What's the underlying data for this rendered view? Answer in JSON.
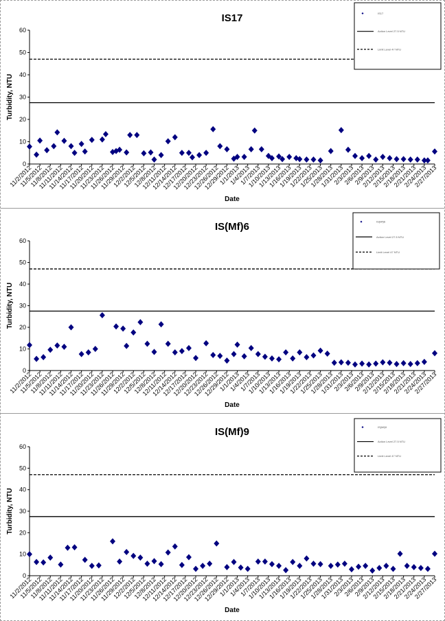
{
  "chart_data": [
    {
      "type": "scatter",
      "title": "IS17",
      "xlabel": "Date",
      "ylabel": "Turbidity, NTU",
      "ylim": [
        0,
        60
      ],
      "yticks": [
        "0",
        "10",
        "20",
        "30",
        "40",
        "50",
        "60"
      ],
      "grid": false,
      "legend_position": "top-right",
      "legend": [
        "IS17",
        "Action Level 27.5 NTU",
        "Limit Level 47 NTU"
      ],
      "reference_lines": [
        {
          "name": "Action Level 27.5 NTU",
          "value": 27.5,
          "style": "solid"
        },
        {
          "name": "Limit Level 47 NTU",
          "value": 47,
          "style": "dashed"
        }
      ],
      "x_start": "11/2/2012",
      "x_end": "2/27/2013",
      "xtick_labels": [
        "11/2/2012",
        "11/5/2012",
        "11/8/2012",
        "11/11/2012",
        "11/14/2012",
        "11/17/2012",
        "11/20/2012",
        "11/23/2012",
        "11/26/2012",
        "11/29/2012",
        "12/2/2012",
        "12/5/2012",
        "12/8/2012",
        "12/11/2012",
        "12/14/2012",
        "12/17/2012",
        "12/20/2012",
        "12/23/2012",
        "12/26/2012",
        "12/29/2012",
        "1/1/2013",
        "1/4/2013",
        "1/7/2013",
        "1/10/2013",
        "1/13/2013",
        "1/16/2013",
        "1/19/2013",
        "1/22/2013",
        "1/25/2013",
        "1/28/2013",
        "1/31/2013",
        "2/3/2013",
        "2/6/2013",
        "2/9/2013",
        "2/12/2013",
        "2/15/2013",
        "2/18/2013",
        "2/21/2013",
        "2/24/2013",
        "2/27/2013"
      ],
      "series": [
        {
          "name": "IS17",
          "x": [
            "11/2/2012",
            "11/4/2012",
            "11/5/2012",
            "11/7/2012",
            "11/9/2012",
            "11/10/2012",
            "11/12/2012",
            "11/14/2012",
            "11/15/2012",
            "11/17/2012",
            "11/18/2012",
            "11/20/2012",
            "11/23/2012",
            "11/24/2012",
            "11/26/2012",
            "11/27/2012",
            "11/28/2012",
            "11/30/2012",
            "12/1/2012",
            "12/3/2012",
            "12/5/2012",
            "12/7/2012",
            "12/8/2012",
            "12/10/2012",
            "12/12/2012",
            "12/14/2012",
            "12/16/2012",
            "12/18/2012",
            "12/19/2012",
            "12/21/2012",
            "12/23/2012",
            "12/25/2012",
            "12/27/2012",
            "12/29/2012",
            "12/31/2012",
            "1/1/2013",
            "1/3/2013",
            "1/5/2013",
            "1/6/2013",
            "1/8/2013",
            "1/10/2013",
            "1/11/2013",
            "1/13/2013",
            "1/14/2013",
            "1/16/2013",
            "1/18/2013",
            "1/19/2013",
            "1/21/2013",
            "1/23/2013",
            "1/25/2013",
            "1/28/2013",
            "1/31/2013",
            "2/2/2013",
            "2/4/2013",
            "2/6/2013",
            "2/8/2013",
            "2/10/2013",
            "2/12/2013",
            "2/14/2013",
            "2/16/2013",
            "2/18/2013",
            "2/20/2013",
            "2/22/2013",
            "2/24/2013",
            "2/25/2013",
            "2/27/2013"
          ],
          "y": [
            7.8,
            4.2,
            10.5,
            6.2,
            8.0,
            14.2,
            10.4,
            8.0,
            5.0,
            9.0,
            5.6,
            10.8,
            11.0,
            13.4,
            5.4,
            5.8,
            6.4,
            5.2,
            13.0,
            13.0,
            4.8,
            5.2,
            2.0,
            4.0,
            10.2,
            12.0,
            5.0,
            5.0,
            3.0,
            4.0,
            5.0,
            15.6,
            8.0,
            6.6,
            2.4,
            3.2,
            3.2,
            6.6,
            15.0,
            6.6,
            3.6,
            2.6,
            3.4,
            2.2,
            3.2,
            2.6,
            2.2,
            2.0,
            2.0,
            1.6,
            5.8,
            15.2,
            6.4,
            3.6,
            2.6,
            3.6,
            2.0,
            3.2,
            2.6,
            2.2,
            2.2,
            2.0,
            2.0,
            1.6,
            1.6,
            5.6
          ]
        }
      ]
    },
    {
      "type": "scatter",
      "title": "IS(Mf)6",
      "xlabel": "Date",
      "ylabel": "Turbidity, NTU",
      "ylim": [
        0,
        60
      ],
      "yticks": [
        "0",
        "10",
        "20",
        "30",
        "40",
        "50",
        "60"
      ],
      "grid": false,
      "legend_position": "top-right",
      "legend": [
        "IS(Mf)6",
        "Action Level 27.5 NTU",
        "Limit Level 47 NTU"
      ],
      "reference_lines": [
        {
          "name": "Action Level 27.5 NTU",
          "value": 27.5,
          "style": "solid"
        },
        {
          "name": "Limit Level 47 NTU",
          "value": 47,
          "style": "dashed"
        }
      ],
      "x_start": "11/2/2012",
      "x_end": "2/27/2013",
      "xtick_labels": [
        "11/2/2012",
        "11/5/2012",
        "11/8/2012",
        "11/11/2012",
        "11/14/2012",
        "11/17/2012",
        "11/20/2012",
        "11/23/2012",
        "11/26/2012",
        "11/29/2012",
        "12/2/2012",
        "12/5/2012",
        "12/8/2012",
        "12/11/2012",
        "12/14/2012",
        "12/17/2012",
        "12/20/2012",
        "12/23/2012",
        "12/26/2012",
        "12/29/2012",
        "1/1/2013",
        "1/4/2013",
        "1/7/2013",
        "1/10/2013",
        "1/13/2013",
        "1/16/2013",
        "1/19/2013",
        "1/22/2013",
        "1/25/2013",
        "1/28/2013",
        "1/31/2013",
        "2/3/2013",
        "2/6/2013",
        "2/9/2013",
        "2/12/2013",
        "2/15/2013",
        "2/18/2013",
        "2/21/2013",
        "2/24/2013",
        "2/27/2013"
      ],
      "series": [
        {
          "name": "IS(Mf)6",
          "x": [
            "11/2/2012",
            "11/4/2012",
            "11/6/2012",
            "11/8/2012",
            "11/10/2012",
            "11/12/2012",
            "11/14/2012",
            "11/17/2012",
            "11/19/2012",
            "11/21/2012",
            "11/23/2012",
            "11/27/2012",
            "11/29/2012",
            "11/30/2012",
            "12/2/2012",
            "12/4/2012",
            "12/6/2012",
            "12/8/2012",
            "12/10/2012",
            "12/12/2012",
            "12/14/2012",
            "12/16/2012",
            "12/18/2012",
            "12/20/2012",
            "12/23/2012",
            "12/25/2012",
            "12/27/2012",
            "12/29/2012",
            "12/31/2012",
            "1/1/2013",
            "1/3/2013",
            "1/5/2013",
            "1/7/2013",
            "1/9/2013",
            "1/11/2013",
            "1/13/2013",
            "1/15/2013",
            "1/17/2013",
            "1/19/2013",
            "1/21/2013",
            "1/23/2013",
            "1/25/2013",
            "1/27/2013",
            "1/29/2013",
            "1/31/2013",
            "2/2/2013",
            "2/4/2013",
            "2/6/2013",
            "2/8/2013",
            "2/10/2013",
            "2/12/2013",
            "2/14/2013",
            "2/16/2013",
            "2/18/2013",
            "2/20/2013",
            "2/22/2013",
            "2/24/2013",
            "2/27/2013"
          ],
          "y": [
            11.8,
            5.4,
            6.2,
            9.6,
            11.6,
            11.0,
            20.0,
            7.6,
            8.4,
            10.0,
            25.6,
            20.4,
            19.4,
            11.4,
            17.6,
            22.4,
            12.4,
            8.6,
            21.4,
            12.4,
            8.4,
            9.0,
            10.4,
            5.8,
            12.6,
            7.2,
            6.8,
            4.6,
            7.6,
            12.0,
            6.6,
            10.4,
            7.6,
            6.4,
            5.6,
            5.2,
            8.4,
            5.6,
            8.4,
            6.2,
            7.0,
            9.2,
            7.8,
            3.6,
            3.8,
            3.6,
            2.8,
            3.2,
            2.8,
            3.2,
            3.8,
            3.6,
            3.0,
            3.4,
            3.0,
            3.4,
            4.0,
            8.0
          ]
        }
      ]
    },
    {
      "type": "scatter",
      "title": "IS(Mf)9",
      "xlabel": "Date",
      "ylabel": "Turbidity, NTU",
      "ylim": [
        0,
        60
      ],
      "yticks": [
        "0",
        "10",
        "20",
        "30",
        "40",
        "50",
        "60"
      ],
      "grid": false,
      "legend_position": "top-right",
      "legend": [
        "IS(Mf)9",
        "Action Level 27.5 NTU",
        "Limit Level 47 NTU"
      ],
      "reference_lines": [
        {
          "name": "Action Level 27.5 NTU",
          "value": 27.5,
          "style": "solid"
        },
        {
          "name": "Limit Level 47 NTU",
          "value": 47,
          "style": "dashed"
        }
      ],
      "x_start": "11/2/2012",
      "x_end": "2/27/2013",
      "xtick_labels": [
        "11/2/2012",
        "11/5/2012",
        "11/8/2012",
        "11/11/2012",
        "11/14/2012",
        "11/17/2012",
        "11/20/2012",
        "11/23/2012",
        "11/26/2012",
        "11/29/2012",
        "12/2/2012",
        "12/5/2012",
        "12/8/2012",
        "12/11/2012",
        "12/14/2012",
        "12/17/2012",
        "12/20/2012",
        "12/23/2012",
        "12/26/2012",
        "12/29/2012",
        "1/1/2013",
        "1/4/2013",
        "1/7/2013",
        "1/10/2013",
        "1/13/2013",
        "1/16/2013",
        "1/19/2013",
        "1/22/2013",
        "1/25/2013",
        "1/28/2013",
        "1/31/2013",
        "2/3/2013",
        "2/6/2013",
        "2/9/2013",
        "2/12/2013",
        "2/15/2013",
        "2/18/2013",
        "2/21/2013",
        "2/24/2013",
        "2/27/2013"
      ],
      "series": [
        {
          "name": "IS(Mf)9",
          "x": [
            "11/2/2012",
            "11/4/2012",
            "11/6/2012",
            "11/8/2012",
            "11/11/2012",
            "11/13/2012",
            "11/15/2012",
            "11/18/2012",
            "11/20/2012",
            "11/22/2012",
            "11/26/2012",
            "11/28/2012",
            "11/30/2012",
            "12/2/2012",
            "12/4/2012",
            "12/6/2012",
            "12/8/2012",
            "12/10/2012",
            "12/12/2012",
            "12/14/2012",
            "12/16/2012",
            "12/18/2012",
            "12/20/2012",
            "12/22/2012",
            "12/24/2012",
            "12/26/2012",
            "12/29/2012",
            "12/31/2012",
            "1/2/2013",
            "1/4/2013",
            "1/7/2013",
            "1/9/2013",
            "1/11/2013",
            "1/13/2013",
            "1/15/2013",
            "1/17/2013",
            "1/19/2013",
            "1/21/2013",
            "1/23/2013",
            "1/25/2013",
            "1/28/2013",
            "1/30/2013",
            "2/1/2013",
            "2/3/2013",
            "2/5/2013",
            "2/7/2013",
            "2/9/2013",
            "2/11/2013",
            "2/13/2013",
            "2/15/2013",
            "2/17/2013",
            "2/19/2013",
            "2/21/2013",
            "2/23/2013",
            "2/25/2013",
            "2/27/2013"
          ],
          "y": [
            10.0,
            6.4,
            6.2,
            8.4,
            5.2,
            13.0,
            13.2,
            7.4,
            4.6,
            4.8,
            16.0,
            6.6,
            11.0,
            9.2,
            8.4,
            5.6,
            6.8,
            5.4,
            10.8,
            13.6,
            5.0,
            8.6,
            3.2,
            4.6,
            5.6,
            15.0,
            4.0,
            6.4,
            3.8,
            3.2,
            6.6,
            6.6,
            5.4,
            4.6,
            2.6,
            6.4,
            4.6,
            8.0,
            5.6,
            5.4,
            4.6,
            5.2,
            5.6,
            3.0,
            4.2,
            4.6,
            2.4,
            3.6,
            4.6,
            3.2,
            10.2,
            4.6,
            4.0,
            3.6,
            3.2,
            10.2
          ]
        }
      ]
    }
  ]
}
